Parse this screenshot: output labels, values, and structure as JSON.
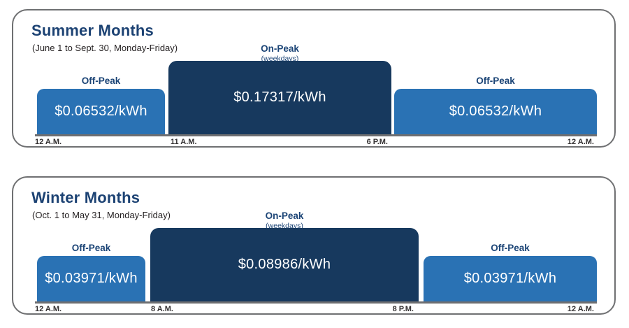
{
  "colors": {
    "off_peak_bar": "#2a72b4",
    "on_peak_bar": "#17395e",
    "title_text": "#1c4273",
    "segment_label_text": "#1b4476",
    "bar_rate_text": "#ffffff",
    "axis_line": "#6d6e71",
    "card_border": "#6f7072",
    "time_label_text": "#333031",
    "background": "#ffffff"
  },
  "panels": [
    {
      "title": "Summer Months",
      "subtitle": "(June 1 to Sept. 30, Monday-Friday)",
      "bars": [
        {
          "label": "Off-Peak",
          "rate": "$0.06532/kWh"
        },
        {
          "label": "On-Peak",
          "sublabel": "(weekdays)",
          "rate": "$0.17317/kWh"
        },
        {
          "label": "Off-Peak",
          "rate": "$0.06532/kWh"
        }
      ],
      "time_labels": [
        "12 A.M.",
        "11 A.M.",
        "6 P.M.",
        "12 A.M."
      ]
    },
    {
      "title": "Winter Months",
      "subtitle": "(Oct. 1 to May 31, Monday-Friday)",
      "bars": [
        {
          "label": "Off-Peak",
          "rate": "$0.03971/kWh"
        },
        {
          "label": "On-Peak",
          "sublabel": "(weekdays)",
          "rate": "$0.08986/kWh"
        },
        {
          "label": "Off-Peak",
          "rate": "$0.03971/kWh"
        }
      ],
      "time_labels": [
        "12 A.M.",
        "8 A.M.",
        "8 P.M.",
        "12 A.M."
      ]
    }
  ],
  "chart_data": [
    {
      "type": "bar",
      "title": "Summer Months",
      "subtitle": "(June 1 to Sept. 30, Monday-Friday)",
      "x_ticks": [
        "12 A.M.",
        "11 A.M.",
        "6 P.M.",
        "12 A.M."
      ],
      "segments": [
        {
          "period": "Off-Peak",
          "start": "12 A.M.",
          "end": "11 A.M.",
          "rate_usd_per_kwh": 0.06532
        },
        {
          "period": "On-Peak (weekdays)",
          "start": "11 A.M.",
          "end": "6 P.M.",
          "rate_usd_per_kwh": 0.17317
        },
        {
          "period": "Off-Peak",
          "start": "6 P.M.",
          "end": "12 A.M.",
          "rate_usd_per_kwh": 0.06532
        }
      ],
      "grid": false,
      "legend": false
    },
    {
      "type": "bar",
      "title": "Winter Months",
      "subtitle": "(Oct. 1 to May 31, Monday-Friday)",
      "x_ticks": [
        "12 A.M.",
        "8 A.M.",
        "8 P.M.",
        "12 A.M."
      ],
      "segments": [
        {
          "period": "Off-Peak",
          "start": "12 A.M.",
          "end": "8 A.M.",
          "rate_usd_per_kwh": 0.03971
        },
        {
          "period": "On-Peak (weekdays)",
          "start": "8 A.M.",
          "end": "8 P.M.",
          "rate_usd_per_kwh": 0.08986
        },
        {
          "period": "Off-Peak",
          "start": "8 P.M.",
          "end": "12 A.M.",
          "rate_usd_per_kwh": 0.03971
        }
      ],
      "grid": false,
      "legend": false
    }
  ]
}
